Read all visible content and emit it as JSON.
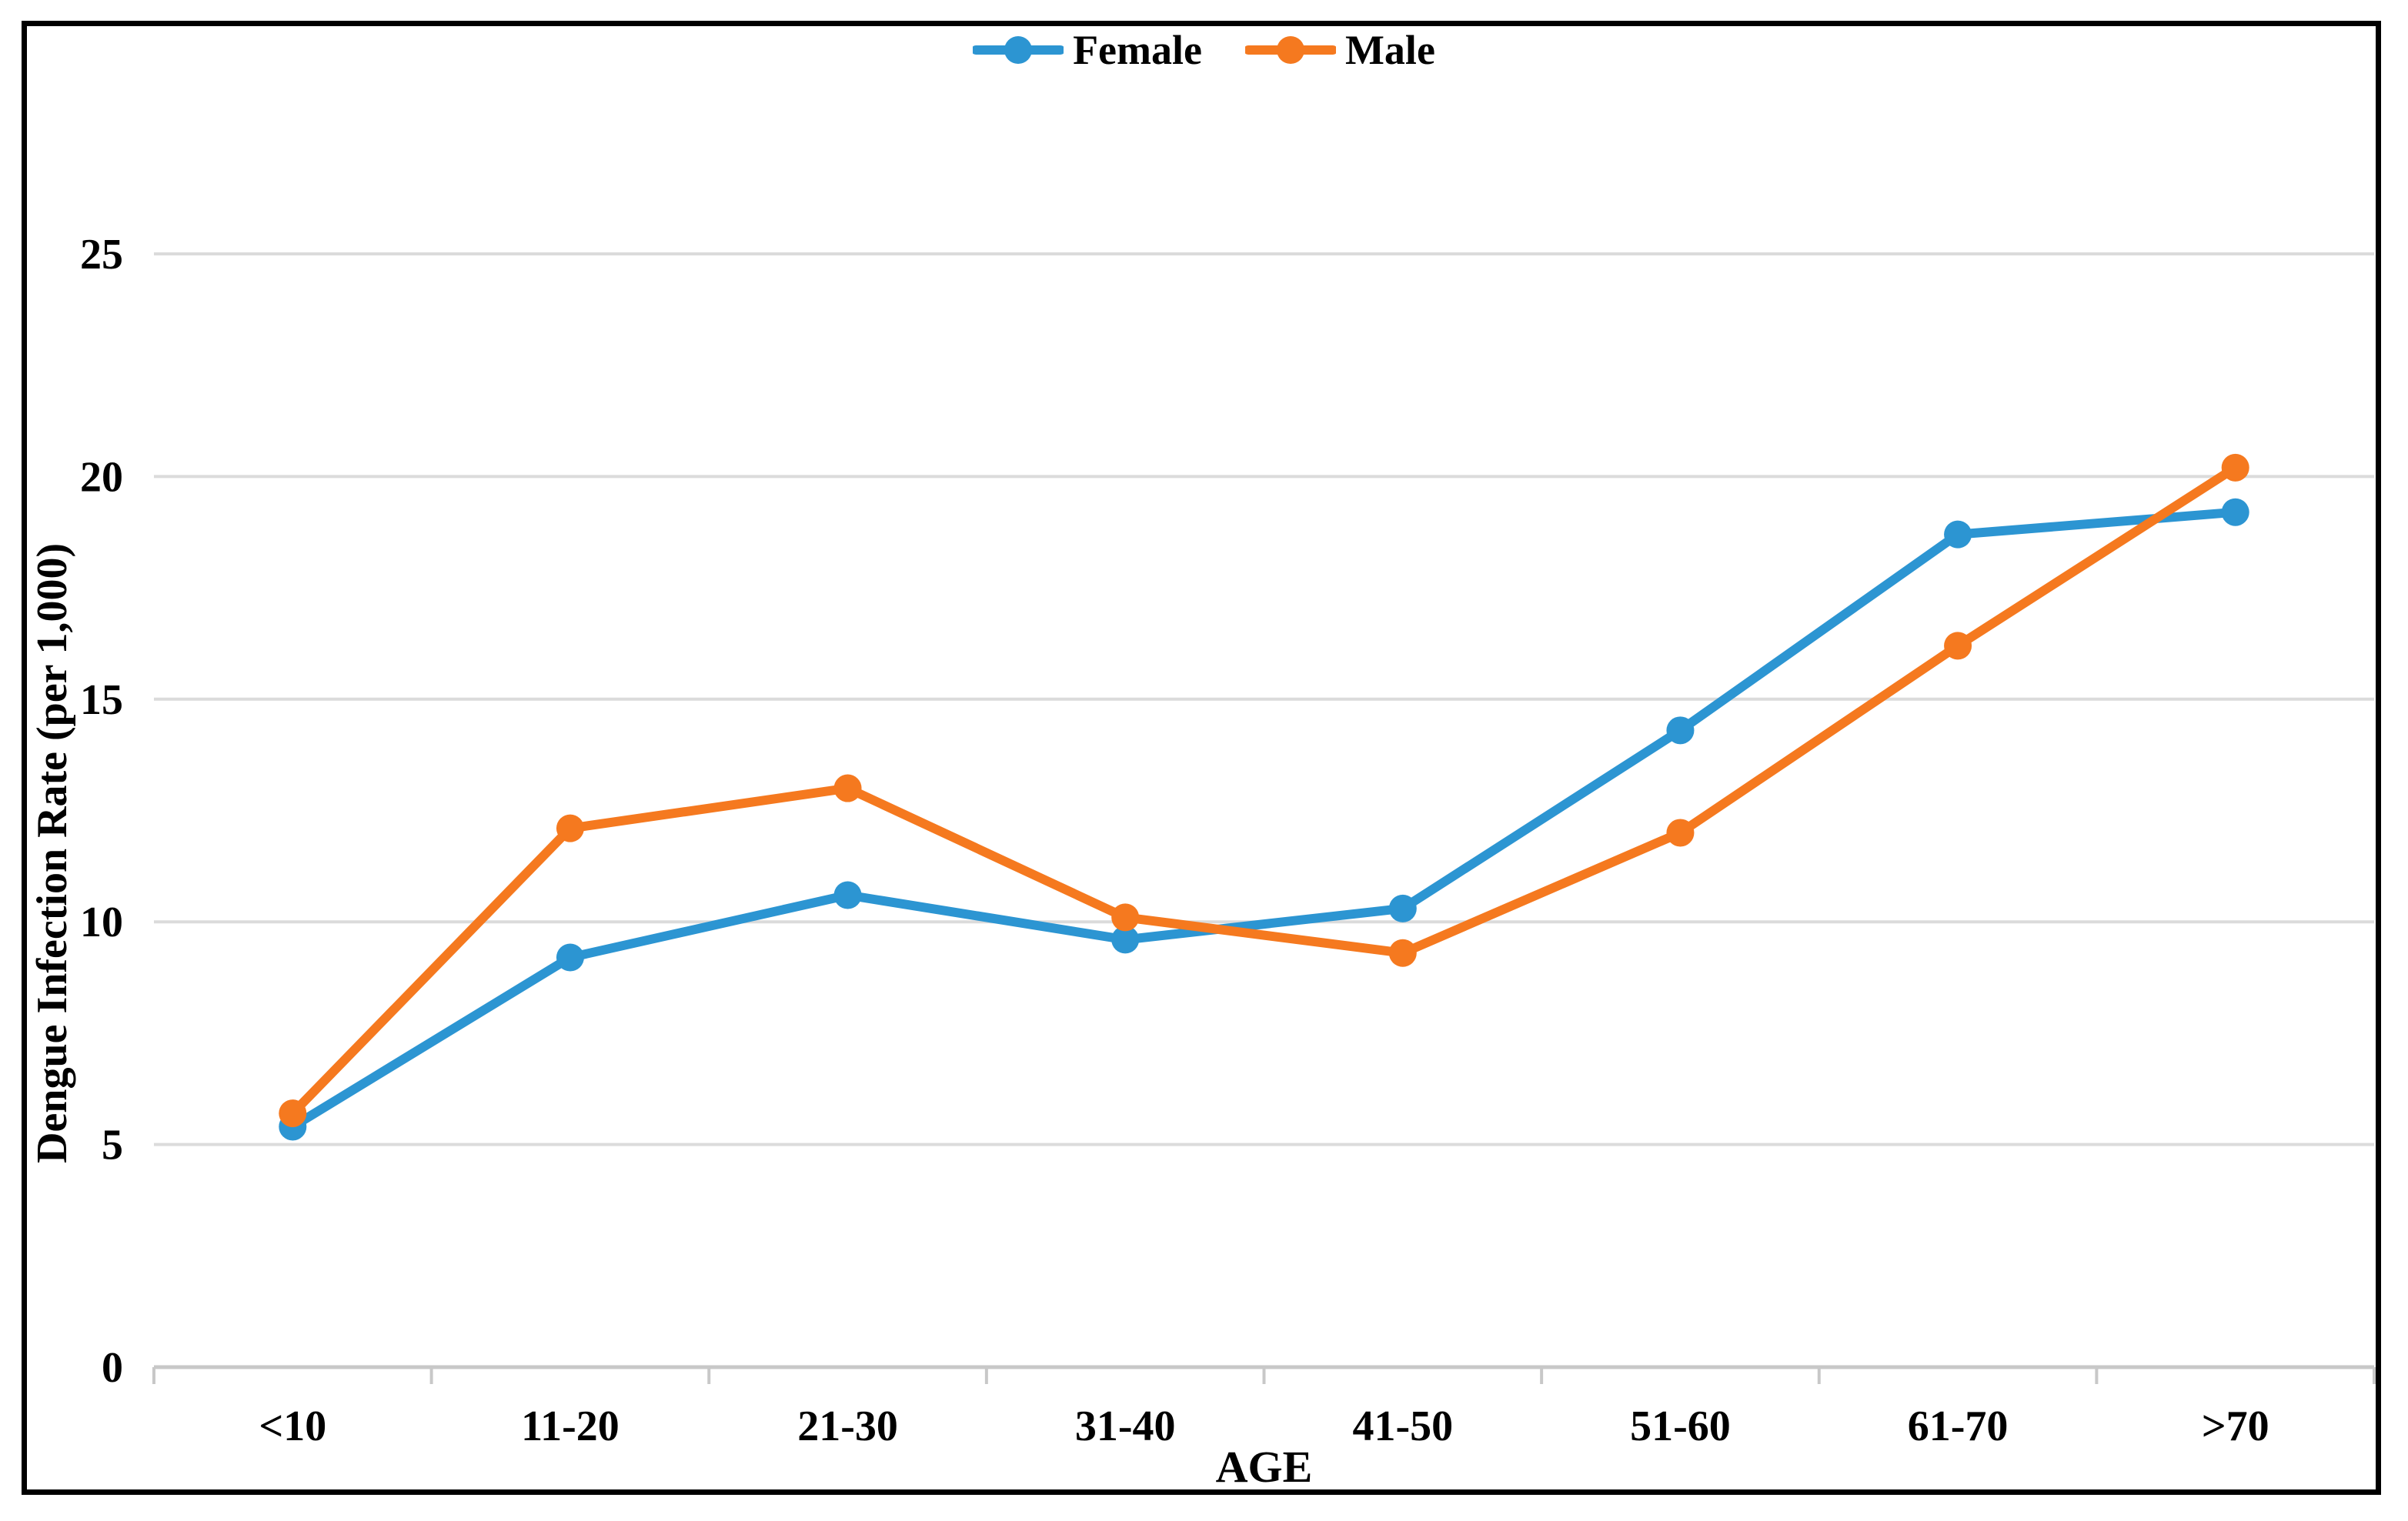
{
  "chart_data": {
    "type": "line",
    "title": "",
    "xlabel": "AGE",
    "ylabel": "Dengue Infection Rate (per 1,000)",
    "categories": [
      "<10",
      "11-20",
      "21-30",
      "31-40",
      "41-50",
      "51-60",
      "61-70",
      ">70"
    ],
    "series": [
      {
        "name": "Female",
        "color": "#2C95D2",
        "values": [
          5.4,
          9.2,
          10.6,
          9.6,
          10.3,
          14.3,
          18.7,
          19.2
        ]
      },
      {
        "name": "Male",
        "color": "#F5791F",
        "values": [
          5.7,
          12.1,
          13.0,
          10.1,
          9.3,
          12.0,
          16.2,
          20.2
        ]
      }
    ],
    "yticks": [
      0,
      5,
      10,
      15,
      20,
      25
    ],
    "ylim": [
      0,
      27.5
    ],
    "grid": true,
    "gridline_color": "#DBDBDB",
    "axis_line_color": "#C8C8C8",
    "text_color": "#000000",
    "frame_color": "#000000",
    "legend_position": "top-center",
    "marker": "circle"
  }
}
